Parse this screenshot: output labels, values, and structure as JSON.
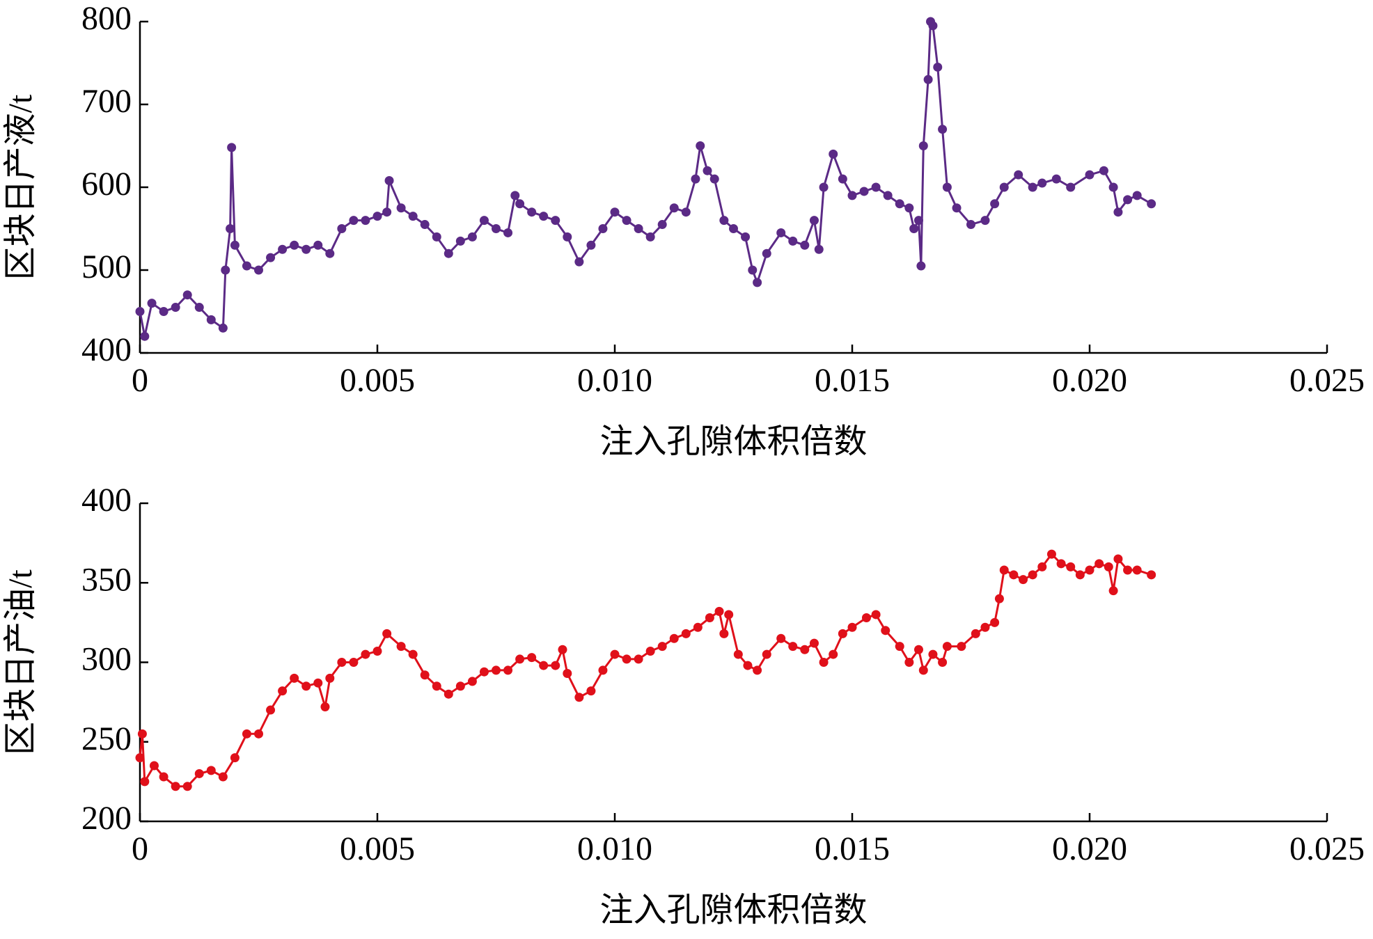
{
  "chart_data": [
    {
      "type": "line",
      "color": "#5b2a86",
      "xlabel": "注入孔隙体积倍数",
      "ylabel": "区块日产液/t",
      "x": [
        0,
        0.0001,
        0.00025,
        0.0005,
        0.00075,
        0.001,
        0.00125,
        0.0015,
        0.00175,
        0.0018,
        0.0019,
        0.00193,
        0.002,
        0.00225,
        0.0025,
        0.00275,
        0.003,
        0.00325,
        0.0035,
        0.00375,
        0.004,
        0.00425,
        0.0045,
        0.00475,
        0.005,
        0.0052,
        0.00525,
        0.0055,
        0.00575,
        0.006,
        0.00625,
        0.0065,
        0.00675,
        0.007,
        0.00725,
        0.0075,
        0.00775,
        0.0079,
        0.008,
        0.00825,
        0.0085,
        0.00875,
        0.009,
        0.00925,
        0.0095,
        0.00975,
        0.01,
        0.01025,
        0.0105,
        0.01075,
        0.011,
        0.01125,
        0.0115,
        0.0117,
        0.0118,
        0.01195,
        0.0121,
        0.0123,
        0.0125,
        0.01275,
        0.0129,
        0.013,
        0.0132,
        0.0135,
        0.01375,
        0.014,
        0.0142,
        0.0143,
        0.0144,
        0.0146,
        0.0148,
        0.015,
        0.01525,
        0.0155,
        0.01575,
        0.016,
        0.0162,
        0.0163,
        0.0164,
        0.01645,
        0.0165,
        0.0166,
        0.01665,
        0.0167,
        0.0168,
        0.0169,
        0.017,
        0.0172,
        0.0175,
        0.0178,
        0.018,
        0.0182,
        0.0185,
        0.0188,
        0.019,
        0.0193,
        0.0196,
        0.02,
        0.0203,
        0.0205,
        0.0206,
        0.0208,
        0.021,
        0.0213
      ],
      "values": [
        450,
        420,
        460,
        450,
        455,
        470,
        455,
        440,
        430,
        500,
        550,
        648,
        530,
        505,
        500,
        515,
        525,
        530,
        525,
        530,
        520,
        550,
        560,
        560,
        565,
        570,
        608,
        575,
        565,
        555,
        540,
        520,
        535,
        540,
        560,
        550,
        545,
        590,
        580,
        570,
        565,
        560,
        540,
        510,
        530,
        550,
        570,
        560,
        550,
        540,
        555,
        575,
        570,
        610,
        650,
        620,
        610,
        560,
        550,
        540,
        500,
        485,
        520,
        545,
        535,
        530,
        560,
        525,
        600,
        640,
        610,
        590,
        595,
        600,
        590,
        580,
        575,
        550,
        560,
        505,
        650,
        730,
        800,
        795,
        745,
        670,
        600,
        575,
        555,
        560,
        580,
        600,
        615,
        600,
        605,
        610,
        600,
        615,
        620,
        600,
        570,
        585,
        590,
        580
      ],
      "xlim": [
        0,
        0.025
      ],
      "xticks": [
        0,
        0.005,
        {
          "value": 0.01,
          "label": "0.010"
        },
        0.015,
        {
          "value": 0.02,
          "label": "0.020"
        },
        0.025
      ],
      "ylim": [
        400,
        800
      ],
      "yticks": [
        400,
        500,
        600,
        700,
        800
      ]
    },
    {
      "type": "line",
      "color": "#e0101a",
      "xlabel": "注入孔隙体积倍数",
      "ylabel": "区块日产油/t",
      "x": [
        0,
        5e-05,
        0.0001,
        0.0003,
        0.0005,
        0.00075,
        0.001,
        0.00125,
        0.0015,
        0.00175,
        0.002,
        0.00225,
        0.0025,
        0.00275,
        0.003,
        0.00325,
        0.0035,
        0.00375,
        0.0039,
        0.004,
        0.00425,
        0.0045,
        0.00475,
        0.005,
        0.0052,
        0.0055,
        0.00575,
        0.006,
        0.00625,
        0.0065,
        0.00675,
        0.007,
        0.00725,
        0.0075,
        0.00775,
        0.008,
        0.00825,
        0.0085,
        0.00875,
        0.0089,
        0.009,
        0.00925,
        0.0095,
        0.00975,
        0.01,
        0.01025,
        0.0105,
        0.01075,
        0.011,
        0.01125,
        0.0115,
        0.01175,
        0.012,
        0.0122,
        0.0123,
        0.0124,
        0.0126,
        0.0128,
        0.013,
        0.0132,
        0.0135,
        0.01375,
        0.014,
        0.0142,
        0.0144,
        0.0146,
        0.0148,
        0.015,
        0.0153,
        0.0155,
        0.0157,
        0.016,
        0.0162,
        0.0164,
        0.0165,
        0.0167,
        0.0169,
        0.017,
        0.0173,
        0.0176,
        0.0178,
        0.018,
        0.0181,
        0.0182,
        0.0184,
        0.0186,
        0.0188,
        0.019,
        0.0192,
        0.0194,
        0.0196,
        0.0198,
        0.02,
        0.0202,
        0.0204,
        0.0205,
        0.0206,
        0.0208,
        0.021,
        0.0213
      ],
      "values": [
        240,
        255,
        225,
        235,
        228,
        222,
        222,
        230,
        232,
        228,
        240,
        255,
        255,
        270,
        282,
        290,
        285,
        287,
        272,
        290,
        300,
        300,
        305,
        307,
        318,
        310,
        305,
        292,
        285,
        280,
        285,
        288,
        294,
        295,
        295,
        302,
        303,
        298,
        298,
        308,
        293,
        278,
        282,
        295,
        305,
        302,
        302,
        307,
        310,
        315,
        318,
        322,
        328,
        332,
        318,
        330,
        305,
        298,
        295,
        305,
        315,
        310,
        308,
        312,
        300,
        305,
        318,
        322,
        328,
        330,
        320,
        310,
        300,
        308,
        295,
        305,
        300,
        310,
        310,
        318,
        322,
        325,
        340,
        358,
        355,
        352,
        355,
        360,
        368,
        362,
        360,
        355,
        358,
        362,
        360,
        345,
        365,
        358,
        358,
        355
      ],
      "xlim": [
        0,
        0.025
      ],
      "xticks": [
        0,
        0.005,
        {
          "value": 0.01,
          "label": "0.010"
        },
        0.015,
        {
          "value": 0.02,
          "label": "0.020"
        },
        0.025
      ],
      "ylim": [
        200,
        400
      ],
      "yticks": [
        200,
        250,
        300,
        350,
        400
      ]
    }
  ]
}
